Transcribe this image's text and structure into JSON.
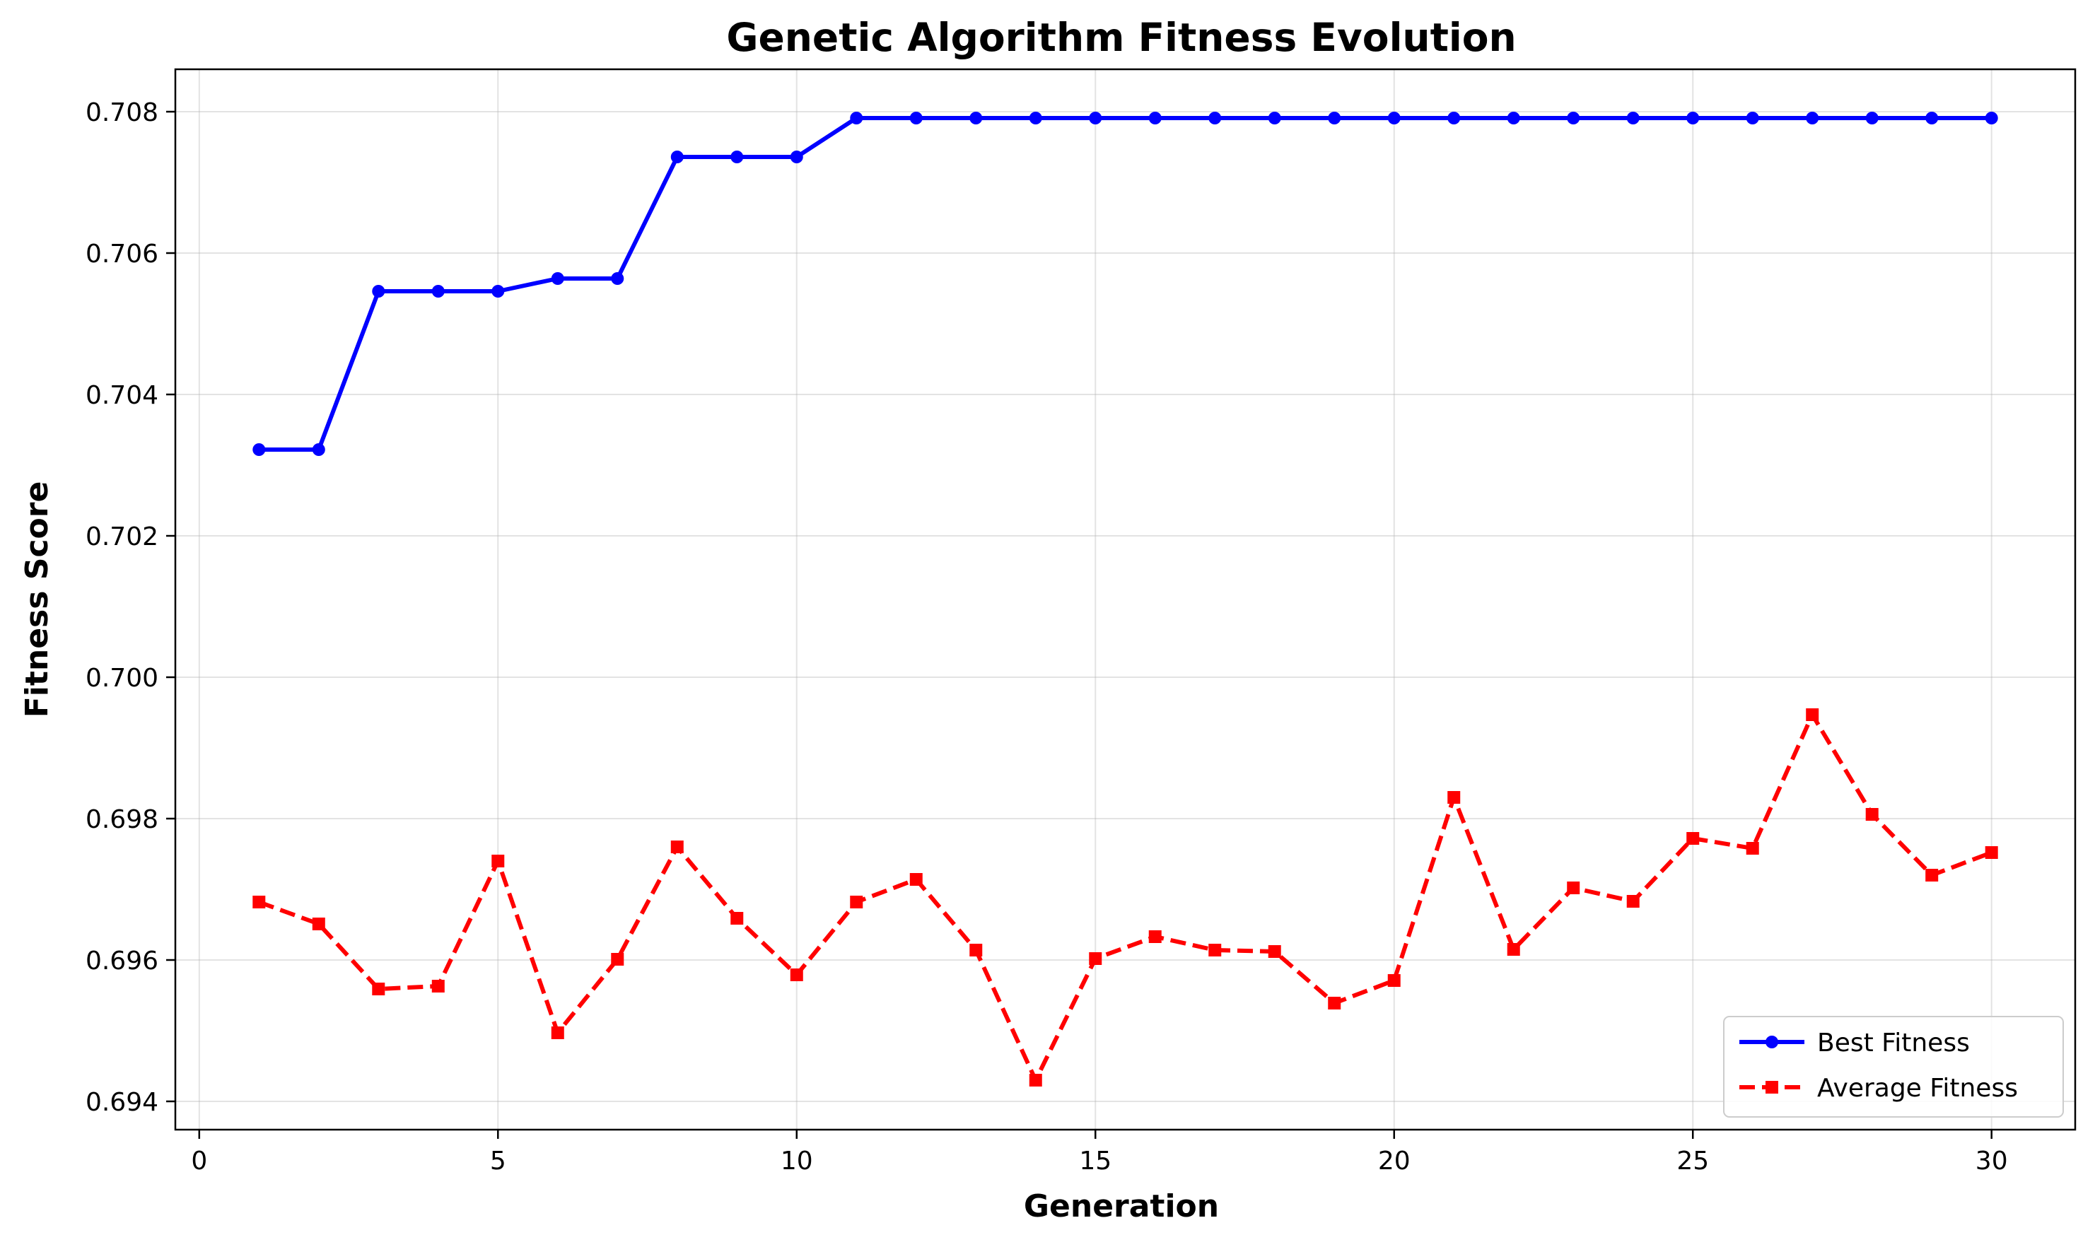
{
  "chart_data": {
    "type": "line",
    "title": "Genetic Algorithm Fitness Evolution",
    "xlabel": "Generation",
    "ylabel": "Fitness Score",
    "xlim": [
      -0.4,
      31.4
    ],
    "ylim": [
      0.6936,
      0.7086
    ],
    "xticks": [
      0,
      5,
      10,
      15,
      20,
      25,
      30
    ],
    "yticks": [
      0.694,
      0.696,
      0.698,
      0.7,
      0.702,
      0.704,
      0.706,
      0.708
    ],
    "grid": true,
    "legend_position": "lower-right",
    "x": [
      1,
      2,
      3,
      4,
      5,
      6,
      7,
      8,
      9,
      10,
      11,
      12,
      13,
      14,
      15,
      16,
      17,
      18,
      19,
      20,
      21,
      22,
      23,
      24,
      25,
      26,
      27,
      28,
      29,
      30
    ],
    "series": [
      {
        "name": "Best Fitness",
        "color": "#0000ff",
        "style": "solid",
        "marker": "circle",
        "values": [
          0.70322,
          0.70322,
          0.70546,
          0.70546,
          0.70546,
          0.70564,
          0.70564,
          0.70736,
          0.70736,
          0.70736,
          0.70791,
          0.70791,
          0.70791,
          0.70791,
          0.70791,
          0.70791,
          0.70791,
          0.70791,
          0.70791,
          0.70791,
          0.70791,
          0.70791,
          0.70791,
          0.70791,
          0.70791,
          0.70791,
          0.70791,
          0.70791,
          0.70791,
          0.70791
        ]
      },
      {
        "name": "Average Fitness",
        "color": "#ff0000",
        "style": "dashed",
        "marker": "square",
        "values": [
          0.69682,
          0.69651,
          0.69559,
          0.69563,
          0.6974,
          0.69497,
          0.69601,
          0.6976,
          0.69659,
          0.69579,
          0.69682,
          0.69714,
          0.69614,
          0.6943,
          0.69602,
          0.69633,
          0.69614,
          0.69612,
          0.69539,
          0.69571,
          0.6983,
          0.69615,
          0.69702,
          0.69683,
          0.69772,
          0.69758,
          0.69947,
          0.69806,
          0.6972,
          0.69752
        ]
      }
    ]
  }
}
